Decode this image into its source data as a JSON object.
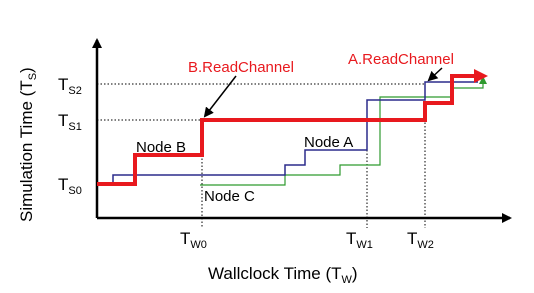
{
  "y_axis": {
    "label": "Simulation Time (T",
    "label_sub": "S",
    "label_end": ")"
  },
  "x_axis": {
    "label": "Wallclock Time (T",
    "label_sub": "W",
    "label_end": ")"
  },
  "y_marks": [
    {
      "main": "T",
      "sub": "S0"
    },
    {
      "main": "T",
      "sub": "S1"
    },
    {
      "main": "T",
      "sub": "S2"
    }
  ],
  "x_marks": [
    {
      "main": "T",
      "sub": "W0"
    },
    {
      "main": "T",
      "sub": "W1"
    },
    {
      "main": "T",
      "sub": "W2"
    }
  ],
  "callouts": [
    "B.ReadChannel",
    "A.ReadChannel"
  ],
  "nodes": [
    "Node A",
    "Node B",
    "Node C"
  ]
}
